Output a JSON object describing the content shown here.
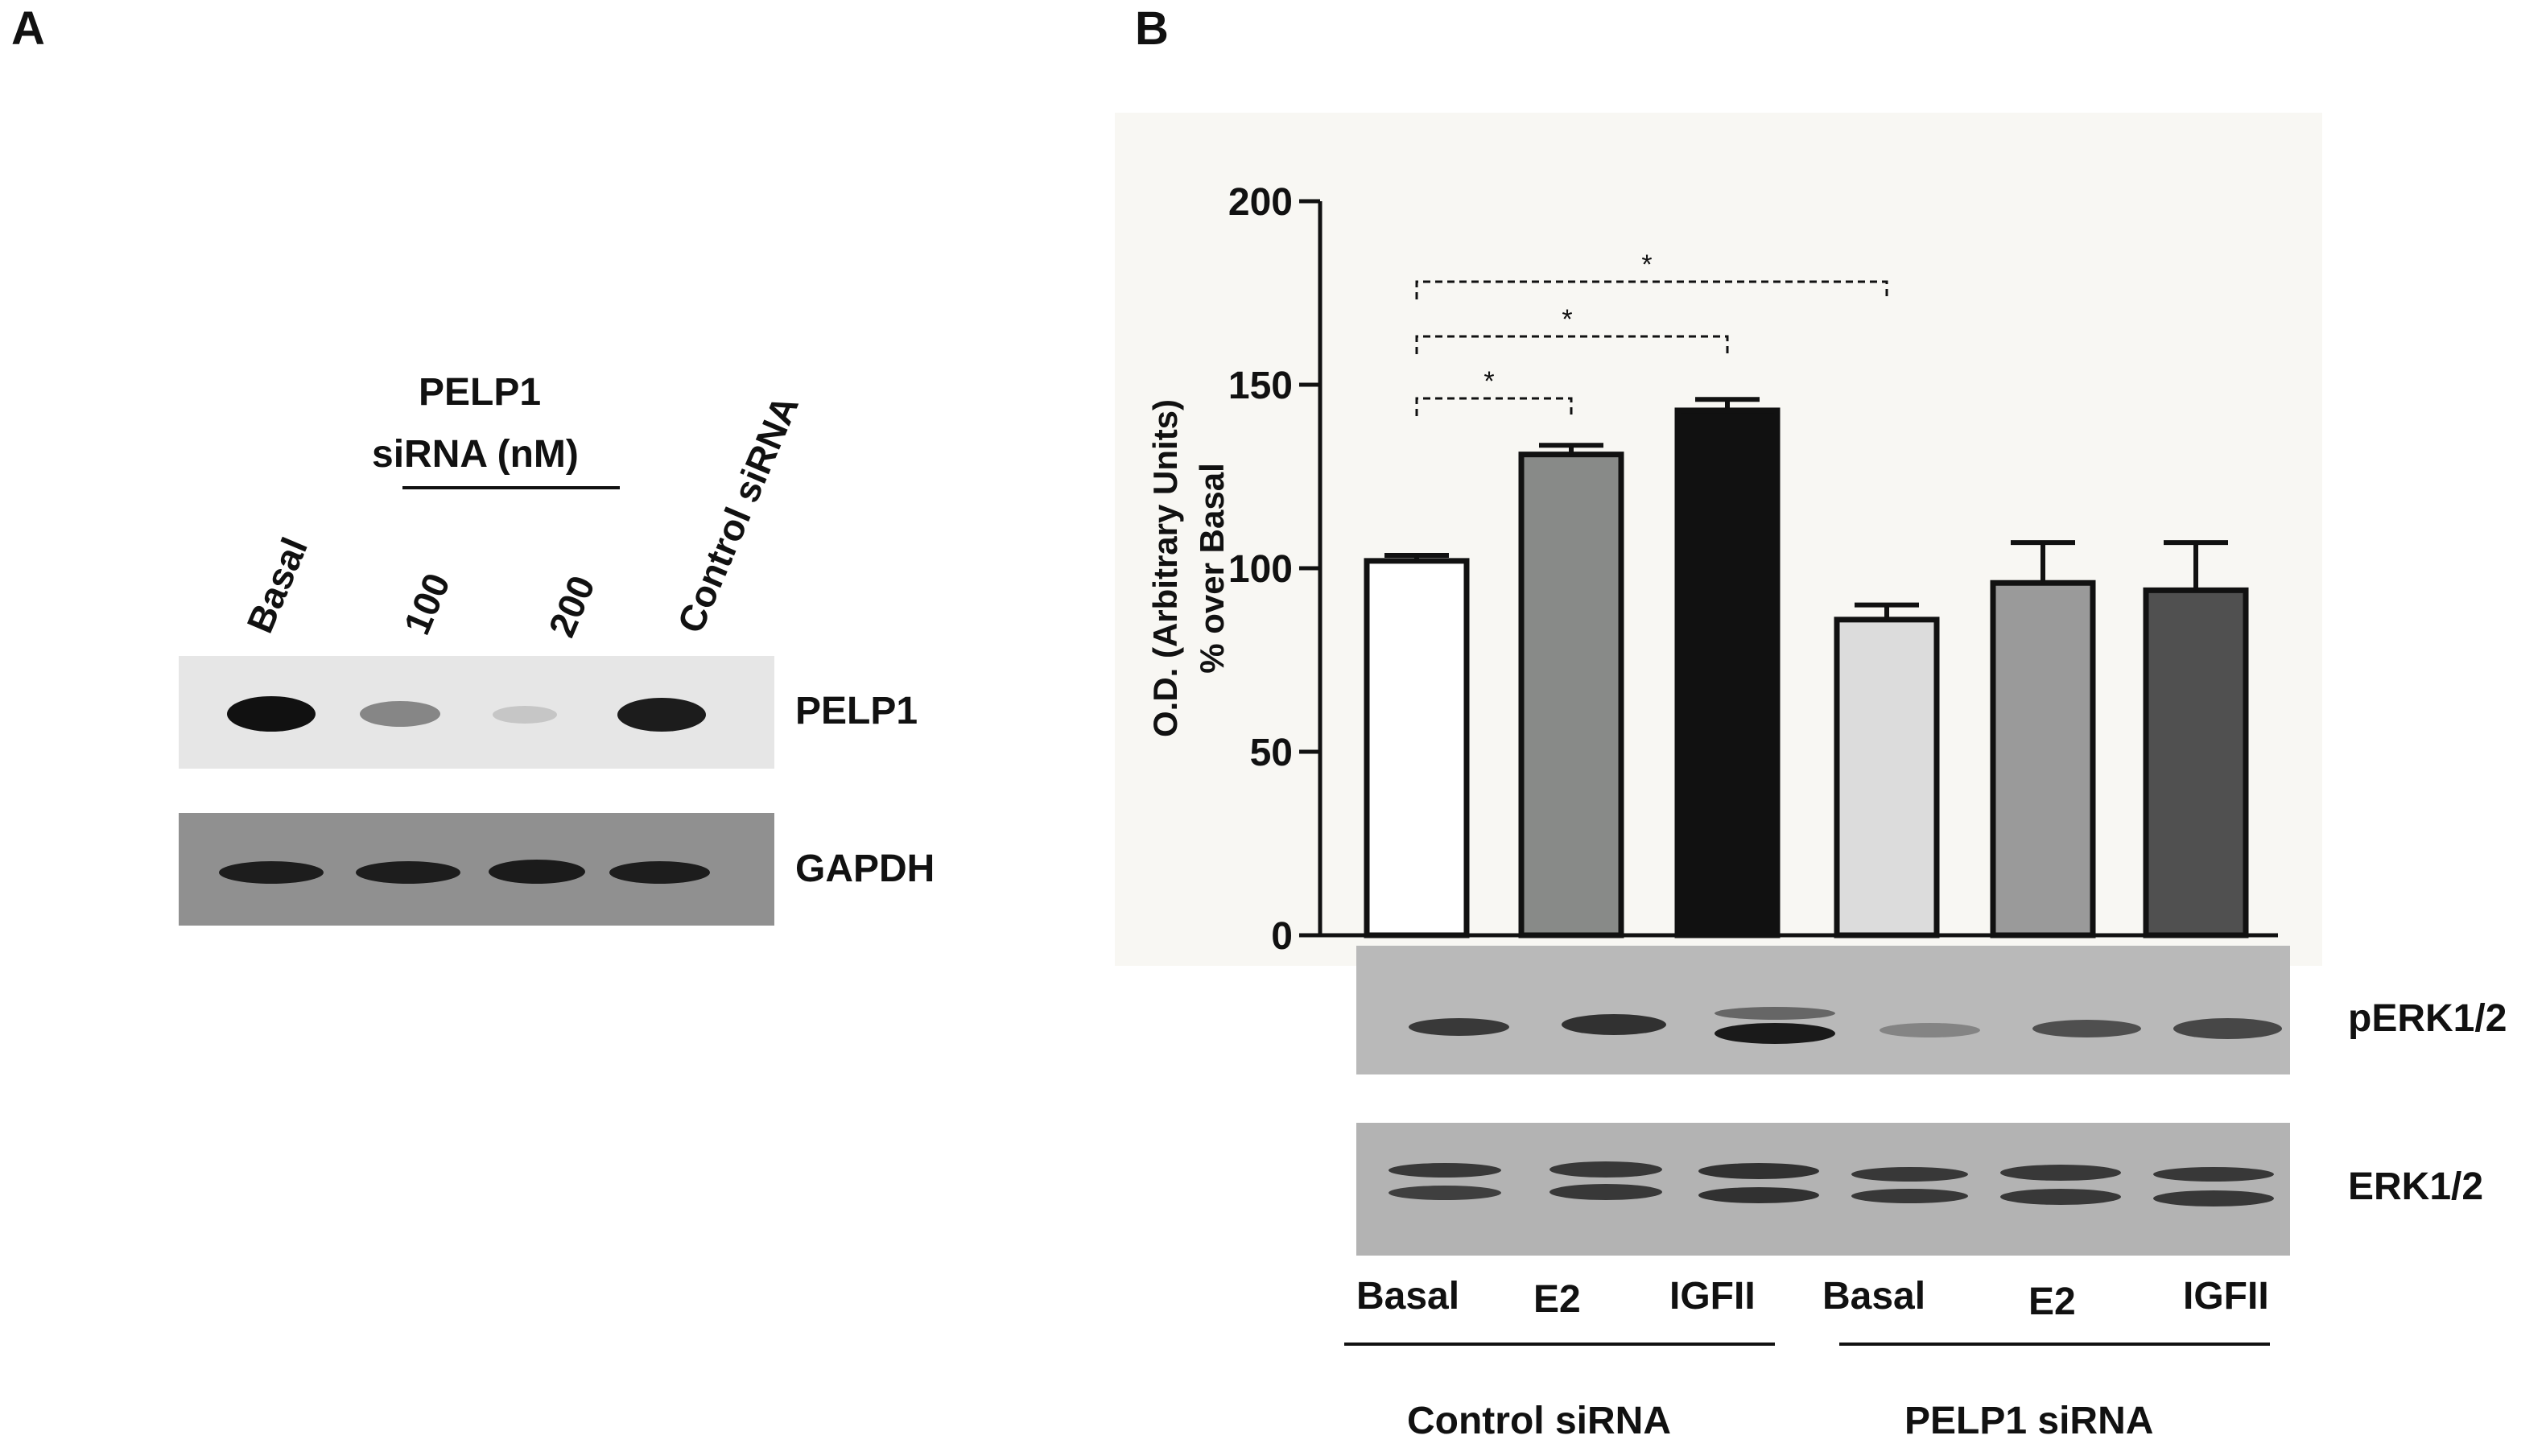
{
  "panel_a": {
    "letter": "A",
    "group_label_line1": "PELP1",
    "group_label_line2": "siRNA (nM)",
    "lanes": [
      "Basal",
      "100",
      "200",
      "Control siRNA"
    ],
    "blot_labels": [
      "PELP1",
      "GAPDH"
    ],
    "pelp1_band_intensity": [
      1.0,
      0.45,
      0.15,
      0.95
    ],
    "gapdh_band_intensity": [
      0.9,
      0.9,
      0.92,
      0.9
    ]
  },
  "panel_b": {
    "letter": "B",
    "blot_labels": [
      "pERK1/2",
      "ERK1/2"
    ],
    "lane_labels": [
      "Basal",
      "E2",
      "IGFII",
      "Basal",
      "E2",
      "IGFII"
    ],
    "group_labels": [
      "Control siRNA",
      "PELP1 siRNA"
    ],
    "significance_marks": [
      "*",
      "*",
      "*"
    ]
  },
  "chart_data": {
    "type": "bar",
    "categories": [
      "Basal",
      "E2",
      "IGFII",
      "Basal",
      "E2",
      "IGFII"
    ],
    "values": [
      102,
      131,
      143,
      86,
      96,
      94
    ],
    "errors": [
      1.5,
      2.5,
      3,
      4,
      11,
      13
    ],
    "colors": [
      "#ffffff",
      "#888a88",
      "#111111",
      "#dcdcdc",
      "#9a9a9a",
      "#505050"
    ],
    "ylabel_line1": "O.D. (Arbitrary Units)",
    "ylabel_line2": "% over Basal",
    "ylim": [
      0,
      200
    ],
    "yticks": [
      "0",
      "50",
      "100",
      "150",
      "200"
    ],
    "comparisons": [
      {
        "from": 0,
        "to": 1,
        "label": "*"
      },
      {
        "from": 0,
        "to": 2,
        "label": "*"
      },
      {
        "from": 0,
        "to": 3,
        "label": "*"
      }
    ]
  }
}
